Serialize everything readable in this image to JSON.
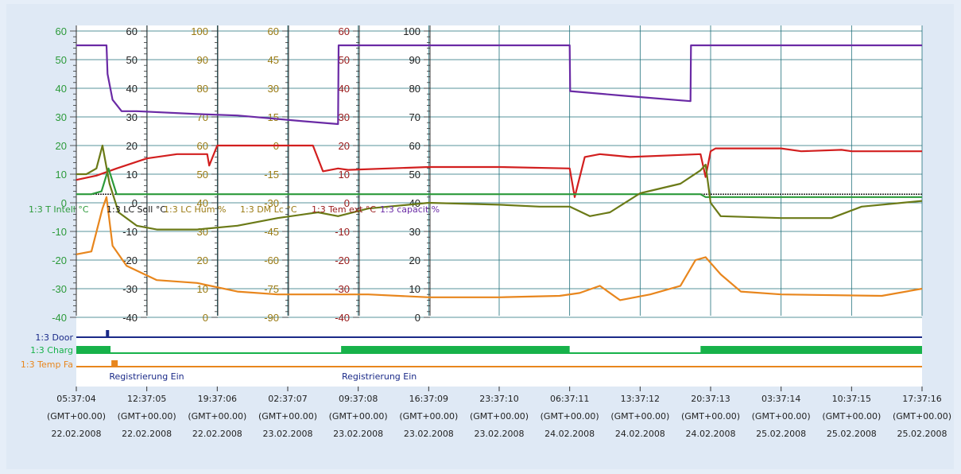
{
  "chart_data": {
    "type": "line",
    "title": "",
    "colors": {
      "plot_bg": "#ffffff",
      "grid": "#1f6f7a",
      "purple": "#6a2aa5",
      "red": "#d21f1f",
      "olive": "#6b7a17",
      "orange": "#e8861d",
      "black": "#111111",
      "green_bar": "#17b24a",
      "navy": "#1a2a88",
      "scale_green": "#2c9a3a",
      "scale_gold": "#9a7a12",
      "scale_dark": "#222222",
      "scale_red": "#9a1a1a"
    },
    "axes": [
      {
        "name": "axis-1",
        "color": "#2c9a3a",
        "ticks": [
          "60",
          "50",
          "40",
          "30",
          "20",
          "10",
          "0",
          "-10",
          "-20",
          "-30",
          "-40"
        ]
      },
      {
        "name": "axis-2",
        "color": "#222222",
        "ticks": [
          "60",
          "50",
          "40",
          "30",
          "20",
          "10",
          "0",
          "-10",
          "-20",
          "-30",
          "-40"
        ]
      },
      {
        "name": "axis-3",
        "color": "#9a7a12",
        "ticks": [
          "100",
          "90",
          "80",
          "70",
          "60",
          "50",
          "40",
          "30",
          "20",
          "10",
          "0"
        ]
      },
      {
        "name": "axis-4",
        "color": "#9a7a12",
        "ticks": [
          "60",
          "45",
          "30",
          "15",
          "0",
          "-15",
          "-30",
          "-45",
          "-60",
          "-75",
          "-90"
        ]
      },
      {
        "name": "axis-5",
        "color": "#9a1a1a",
        "ticks": [
          "60",
          "50",
          "40",
          "30",
          "20",
          "10",
          "0",
          "-10",
          "-20",
          "-30",
          "-40"
        ]
      },
      {
        "name": "axis-6",
        "color": "#222222",
        "ticks": [
          "100",
          "90",
          "80",
          "70",
          "60",
          "50",
          "40",
          "30",
          "20",
          "10",
          "0"
        ]
      }
    ],
    "series_labels": [
      {
        "text": "1:3 T Intell °C",
        "color": "#2c9a3a"
      },
      {
        "text": "1:3 LC Soll °C",
        "color": "#111111"
      },
      {
        "text": "1:3 LC Hum %",
        "color": "#9a7a12"
      },
      {
        "text": "1:3 DM Lc °C",
        "color": "#9a7a12"
      },
      {
        "text": "1:3 Tem ext °C",
        "color": "#9a1a1a"
      },
      {
        "text": "1:3 capacit %",
        "color": "#6a2aa5"
      }
    ],
    "annotation": "Registrierung Ein",
    "digital_channels": [
      {
        "name": "1:3 Door",
        "color": "#1a2a88"
      },
      {
        "name": "1:3 Charg",
        "color": "#17b24a"
      },
      {
        "name": "1:3 Temp Fa",
        "color": "#e8861d"
      }
    ],
    "x_ticks": [
      {
        "time": "05:37:04",
        "tz": "(GMT+00.00)",
        "date": "22.02.2008"
      },
      {
        "time": "12:37:05",
        "tz": "(GMT+00.00)",
        "date": "22.02.2008"
      },
      {
        "time": "19:37:06",
        "tz": "(GMT+00.00)",
        "date": "22.02.2008"
      },
      {
        "time": "02:37:07",
        "tz": "(GMT+00.00)",
        "date": "23.02.2008"
      },
      {
        "time": "09:37:08",
        "tz": "(GMT+00.00)",
        "date": "23.02.2008"
      },
      {
        "time": "16:37:09",
        "tz": "(GMT+00.00)",
        "date": "23.02.2008"
      },
      {
        "time": "23:37:10",
        "tz": "(GMT+00.00)",
        "date": "23.02.2008"
      },
      {
        "time": "06:37:11",
        "tz": "(GMT+00.00)",
        "date": "24.02.2008"
      },
      {
        "time": "13:37:12",
        "tz": "(GMT+00.00)",
        "date": "24.02.2008"
      },
      {
        "time": "20:37:13",
        "tz": "(GMT+00.00)",
        "date": "24.02.2008"
      },
      {
        "time": "03:37:14",
        "tz": "(GMT+00.00)",
        "date": "25.02.2008"
      },
      {
        "time": "10:37:15",
        "tz": "(GMT+00.00)",
        "date": "25.02.2008"
      },
      {
        "time": "17:37:16",
        "tz": "(GMT+00.00)",
        "date": "25.02.2008"
      }
    ],
    "x_hours": [
      0,
      7,
      14,
      21,
      28,
      35,
      42,
      49,
      56,
      63,
      70,
      77,
      84
    ],
    "series": [
      {
        "key": "capacity",
        "color": "#6a2aa5",
        "axis": "axis-6",
        "x": [
          0,
          3,
          3.1,
          3.6,
          4.5,
          6,
          12,
          16,
          22.5,
          26,
          26.05,
          49,
          49.05,
          54,
          61,
          61.05,
          84
        ],
        "values": [
          95,
          95,
          85,
          76,
          72,
          72,
          71,
          70.5,
          68.5,
          67.5,
          95,
          95,
          79,
          77.5,
          75.5,
          95,
          95
        ]
      },
      {
        "key": "t-ext",
        "color": "#d21f1f",
        "axis": "axis-5",
        "x": [
          0,
          2,
          4,
          7,
          10,
          13,
          13.2,
          14,
          20,
          23.5,
          24.5,
          26,
          27,
          35,
          42,
          49,
          49.5,
          50.5,
          52,
          55,
          62,
          62.5,
          63,
          63.5,
          64,
          70,
          72,
          76,
          77,
          84
        ],
        "values": [
          8,
          9.5,
          12,
          15.5,
          17,
          17,
          13,
          20,
          20,
          20,
          11,
          12,
          11.5,
          12.5,
          12.5,
          12,
          2,
          16,
          17,
          16,
          17,
          9,
          18,
          19,
          19,
          19,
          18,
          18.5,
          18,
          18
        ]
      },
      {
        "key": "lc-soll",
        "color": "#111111",
        "axis": "axis-2",
        "x": [
          0,
          84
        ],
        "values": [
          3,
          3
        ]
      },
      {
        "key": "t-intell",
        "color": "#2c9a3a",
        "axis": "axis-1",
        "x": [
          0,
          1.5,
          2.5,
          3.2,
          4,
          50,
          62,
          62.5,
          84
        ],
        "values": [
          3,
          3,
          4,
          12,
          3,
          3,
          3,
          2,
          2
        ]
      },
      {
        "key": "dm-lc",
        "color": "#6b7a17",
        "axis": "axis-4",
        "x": [
          0,
          1,
          2,
          2.6,
          3.3,
          4.2,
          6,
          8,
          12,
          16,
          20,
          24,
          26,
          29,
          35,
          42,
          46,
          49,
          51,
          53,
          56,
          60,
          62,
          62.5,
          63,
          64,
          70,
          75,
          78,
          84
        ],
        "values": [
          -15,
          -15,
          -12,
          0,
          -20,
          -35,
          -42,
          -44,
          -44,
          -42,
          -38,
          -35,
          -37,
          -33,
          -30,
          -31,
          -32,
          -32,
          -37,
          -35,
          -25,
          -20,
          -13,
          -10,
          -30,
          -37,
          -38,
          -38,
          -32,
          -29
        ]
      },
      {
        "key": "lc-hum",
        "color": "#e8861d",
        "axis": "axis-3",
        "x": [
          0,
          1.5,
          2.6,
          3,
          3.6,
          5,
          8,
          12,
          16,
          20,
          26,
          29,
          35,
          42,
          48,
          50,
          52,
          54,
          57,
          60,
          61.5,
          62.5,
          64,
          66,
          70,
          80,
          84
        ],
        "values": [
          22,
          23,
          38,
          42,
          25,
          18,
          13,
          12,
          9,
          8,
          8,
          8,
          7,
          7,
          7.5,
          8.5,
          11,
          6,
          8,
          11,
          20,
          21,
          15,
          9,
          8,
          7.5,
          10
        ]
      }
    ],
    "digital": [
      {
        "channel": "1:3 Door",
        "segments": [
          [
            0,
            84
          ]
        ],
        "pulses": [
          3.1
        ]
      },
      {
        "channel": "1:3 Charg",
        "high": [
          [
            0,
            3.4
          ],
          [
            26.3,
            49
          ],
          [
            62,
            84
          ]
        ]
      },
      {
        "channel": "1:3 Temp Fa",
        "segments": [
          [
            0,
            84
          ]
        ],
        "pulses": [
          3.8
        ]
      }
    ],
    "annotation_marks": [
      3.9,
      27
    ]
  }
}
